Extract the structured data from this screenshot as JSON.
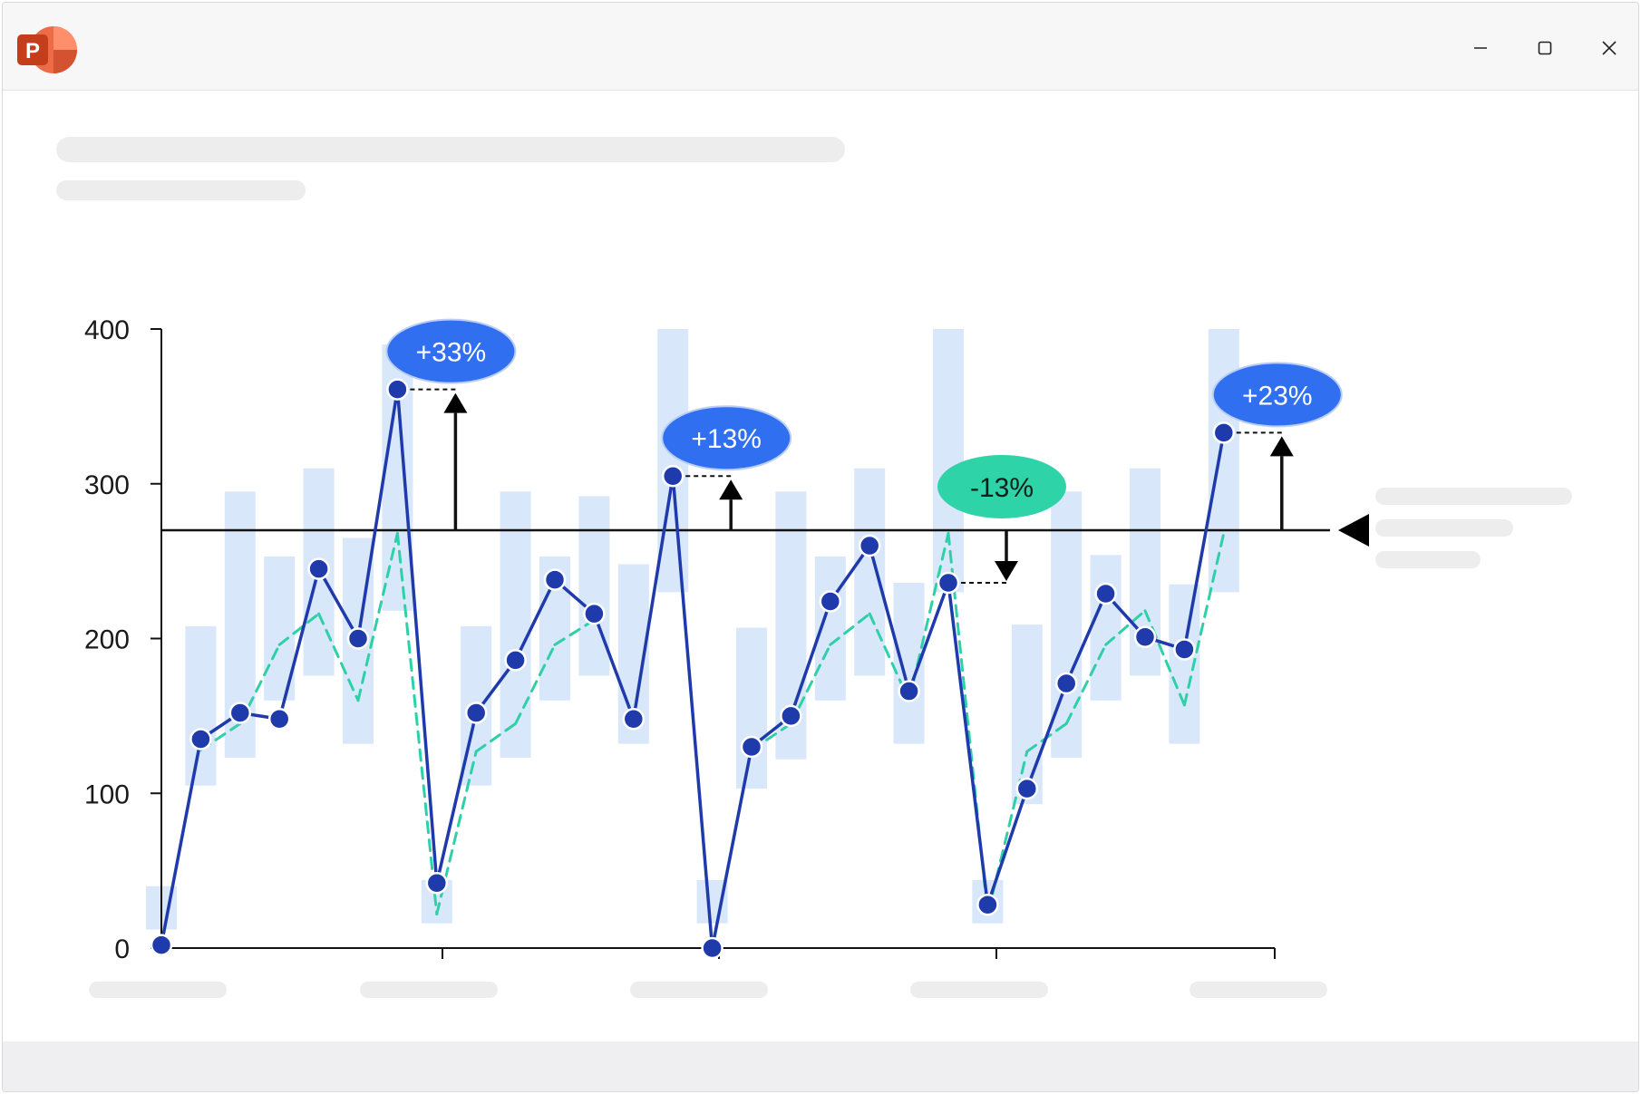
{
  "window": {
    "app": "PowerPoint",
    "app_icon": "powerpoint-icon",
    "controls": [
      "minimize-icon",
      "maximize-icon",
      "close-icon"
    ]
  },
  "colors": {
    "line": "#1f3aab",
    "dot": "#1f3aab",
    "dashed": "#2fd0a8",
    "band": "#d9e7fb",
    "badge_blue": "#2f6ff0",
    "badge_green": "#2fd3a8",
    "axis": "#111111"
  },
  "chart_data": {
    "type": "line",
    "y_ticks": [
      "0",
      "100",
      "200",
      "300",
      "400"
    ],
    "ylim": [
      0,
      400
    ],
    "reference_line": 270,
    "series": [
      {
        "values": [
          2,
          135,
          152,
          148,
          245,
          200,
          361,
          42,
          152,
          186,
          238,
          216,
          148,
          305,
          0,
          130,
          150,
          224,
          260,
          166,
          236,
          28,
          103,
          171,
          229,
          201,
          193,
          333
        ]
      },
      {
        "values": [
          null,
          128,
          145,
          196,
          216,
          160,
          268,
          22,
          127,
          145,
          196,
          212,
          null,
          null,
          null,
          128,
          145,
          196,
          216,
          160,
          268,
          22,
          127,
          145,
          196,
          218,
          157,
          268
        ]
      }
    ],
    "bands": [
      [
        12,
        40
      ],
      [
        105,
        208
      ],
      [
        123,
        295
      ],
      [
        160,
        253
      ],
      [
        176,
        310
      ],
      [
        132,
        265
      ],
      [
        218,
        390
      ],
      [
        16,
        44
      ],
      [
        105,
        208
      ],
      [
        123,
        295
      ],
      [
        160,
        253
      ],
      [
        176,
        292
      ],
      [
        132,
        248
      ],
      [
        230,
        400
      ],
      [
        16,
        44
      ],
      [
        103,
        207
      ],
      [
        122,
        295
      ],
      [
        160,
        253
      ],
      [
        176,
        310
      ],
      [
        132,
        236
      ],
      [
        230,
        400
      ],
      [
        16,
        44
      ],
      [
        93,
        209
      ],
      [
        123,
        295
      ],
      [
        160,
        254
      ],
      [
        176,
        310
      ],
      [
        132,
        235
      ],
      [
        230,
        400
      ]
    ],
    "annotations": [
      {
        "text": "+33%",
        "color": "blue",
        "point": 6,
        "direction": "up"
      },
      {
        "text": "+13%",
        "color": "blue",
        "point": 13,
        "direction": "up"
      },
      {
        "text": "-13%",
        "color": "green",
        "point": 20,
        "direction": "down"
      },
      {
        "text": "+23%",
        "color": "blue",
        "point": 27,
        "direction": "up"
      }
    ],
    "x_tick_labels": [
      "",
      "",
      "",
      "",
      ""
    ],
    "grid": false
  }
}
